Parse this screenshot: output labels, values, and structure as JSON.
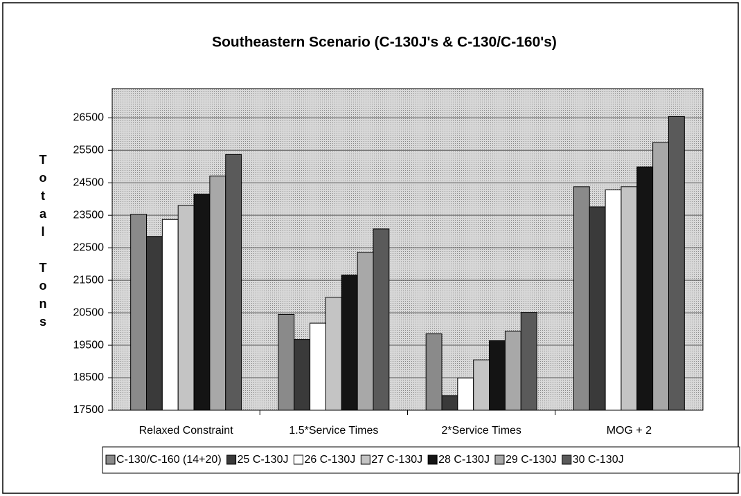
{
  "chart_data": {
    "type": "bar",
    "title": "Southeastern Scenario (C-130J's & C-130/C-160's)",
    "y_label": "Total Tons",
    "categories": [
      "Relaxed Constraint",
      "1.5*Service Times",
      "2*Service Times",
      "MOG + 2"
    ],
    "series": [
      {
        "name": "C-130/C-160 (14+20)",
        "color": "#8a8a8a",
        "values": [
          23530,
          20450,
          19850,
          24380
        ]
      },
      {
        "name": "25 C-130J",
        "color": "#3a3a3a",
        "values": [
          22850,
          19680,
          17950,
          23760
        ]
      },
      {
        "name": "26 C-130J",
        "color": "#ffffff",
        "values": [
          23370,
          20180,
          18490,
          24280
        ]
      },
      {
        "name": "27 C-130J",
        "color": "#c4c4c4",
        "values": [
          23800,
          20980,
          19050,
          24380
        ]
      },
      {
        "name": "28 C-130J",
        "color": "#141414",
        "values": [
          24150,
          21660,
          19640,
          24990
        ]
      },
      {
        "name": "29 C-130J",
        "color": "#a8a8a8",
        "values": [
          24710,
          22360,
          19930,
          25740
        ]
      },
      {
        "name": "30 C-130J",
        "color": "#5a5a5a",
        "values": [
          25370,
          23080,
          20510,
          26540
        ]
      }
    ],
    "ylim": [
      17500,
      27400
    ],
    "yticks": [
      17500,
      18500,
      19500,
      20500,
      21500,
      22500,
      23500,
      24500,
      25500,
      26500
    ],
    "grid": true
  }
}
